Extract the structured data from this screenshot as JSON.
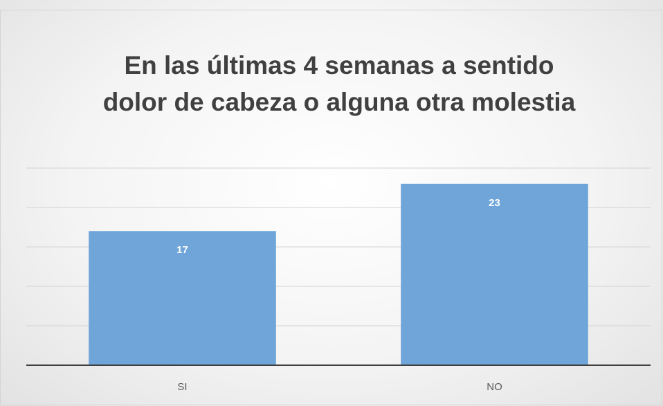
{
  "chart_data": {
    "type": "bar",
    "title": "En las últimas 4 semanas a sentido dolor de cabeza o alguna otra molestia",
    "categories": [
      "SI",
      "NO"
    ],
    "values": [
      17,
      23
    ],
    "color": "#6fa5d9",
    "ylim": [
      0,
      25
    ],
    "yticks": [
      0,
      5,
      10,
      15,
      20,
      25
    ],
    "grid": true
  }
}
